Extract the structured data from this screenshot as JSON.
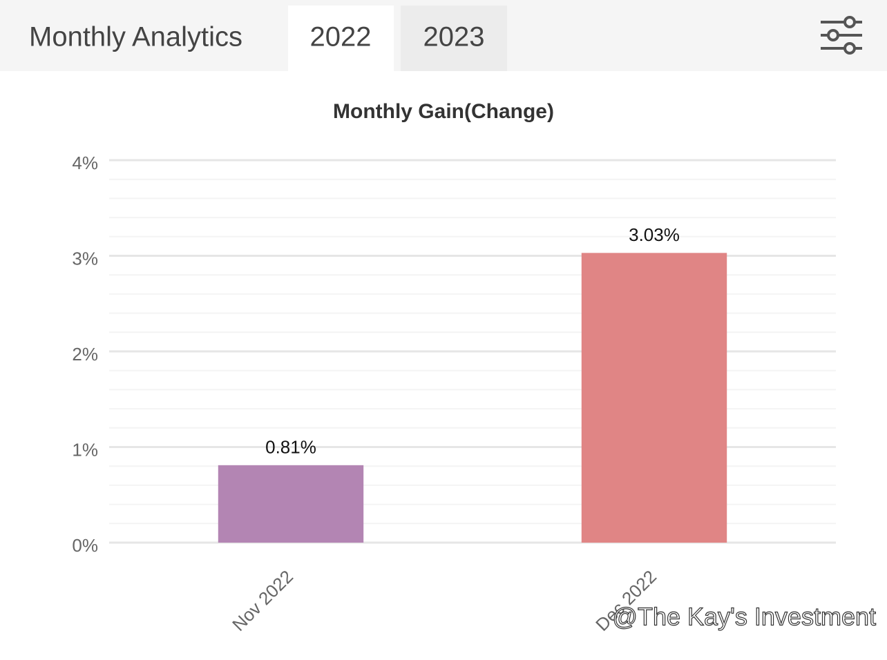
{
  "header": {
    "title": "Monthly Analytics",
    "tabs": [
      "2022",
      "2023"
    ]
  },
  "chart_data": {
    "type": "bar",
    "title": "Monthly Gain(Change)",
    "categories": [
      "Nov 2022",
      "Dec 2022"
    ],
    "values": [
      0.81,
      3.03
    ],
    "value_labels": [
      "0.81%",
      "3.03%"
    ],
    "colors": [
      "#b385b3",
      "#e08585"
    ],
    "ylim": [
      0,
      4
    ],
    "yticks": [
      {
        "value": 0,
        "label": "0%"
      },
      {
        "value": 1,
        "label": "1%"
      },
      {
        "value": 2,
        "label": "2%"
      },
      {
        "value": 3,
        "label": "3%"
      },
      {
        "value": 4,
        "label": "4%"
      }
    ],
    "minor_yticks": [
      0.2,
      0.4,
      0.6,
      0.8,
      1.2,
      1.4,
      1.6,
      1.8,
      2.2,
      2.4,
      2.6,
      2.8,
      3.2,
      3.4,
      3.6,
      3.8
    ],
    "grid": true
  },
  "watermark": "@The Kay's Investment"
}
